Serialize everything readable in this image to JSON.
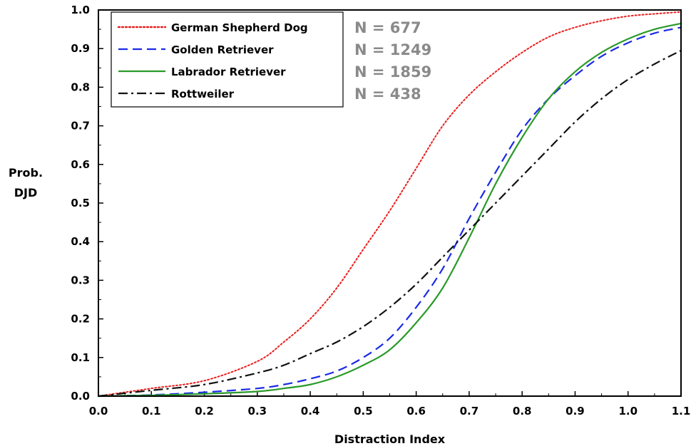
{
  "chart_data": {
    "type": "line",
    "title": "",
    "xlabel": "Distraction Index",
    "ylabel_lines": [
      "Prob.",
      "DJD"
    ],
    "xlim": [
      0.0,
      1.1
    ],
    "ylim": [
      0.0,
      1.0
    ],
    "xticks": [
      "0.0",
      "0.1",
      "0.2",
      "0.3",
      "0.4",
      "0.5",
      "0.6",
      "0.7",
      "0.8",
      "0.9",
      "1.0",
      "1.1"
    ],
    "yticks": [
      "0.0",
      "0.1",
      "0.2",
      "0.3",
      "0.4",
      "0.5",
      "0.6",
      "0.7",
      "0.8",
      "0.9",
      "1.0"
    ],
    "grid": false,
    "legend_position": "top-left",
    "x": [
      0.0,
      0.1,
      0.2,
      0.3,
      0.35,
      0.4,
      0.45,
      0.5,
      0.55,
      0.6,
      0.65,
      0.7,
      0.75,
      0.8,
      0.85,
      0.9,
      0.95,
      1.0,
      1.05,
      1.1
    ],
    "series": [
      {
        "name": "German Shepherd Dog",
        "count_label": "N = 677",
        "color": "#e8201f",
        "dash": "dotted",
        "values": [
          0.0,
          0.02,
          0.04,
          0.09,
          0.14,
          0.2,
          0.28,
          0.38,
          0.48,
          0.59,
          0.7,
          0.78,
          0.84,
          0.89,
          0.93,
          0.955,
          0.972,
          0.984,
          0.99,
          0.995
        ]
      },
      {
        "name": "Golden Retriever",
        "count_label": "N = 1249",
        "color": "#1a2ae6",
        "dash": "dashed",
        "values": [
          0.0,
          0.003,
          0.01,
          0.02,
          0.03,
          0.045,
          0.065,
          0.1,
          0.15,
          0.23,
          0.33,
          0.46,
          0.58,
          0.69,
          0.77,
          0.83,
          0.88,
          0.915,
          0.94,
          0.955
        ]
      },
      {
        "name": "Labrador Retriever",
        "count_label": "N = 1859",
        "color": "#2a9a2a",
        "dash": "solid",
        "values": [
          0.0,
          0.002,
          0.006,
          0.012,
          0.02,
          0.03,
          0.05,
          0.08,
          0.12,
          0.19,
          0.28,
          0.41,
          0.55,
          0.67,
          0.77,
          0.84,
          0.89,
          0.925,
          0.95,
          0.965
        ]
      },
      {
        "name": "Rottweiler",
        "count_label": "N = 438",
        "color": "#111111",
        "dash": "dashdot",
        "values": [
          0.0,
          0.015,
          0.03,
          0.06,
          0.08,
          0.11,
          0.14,
          0.18,
          0.23,
          0.29,
          0.36,
          0.43,
          0.5,
          0.57,
          0.64,
          0.71,
          0.77,
          0.82,
          0.86,
          0.895
        ]
      }
    ]
  }
}
